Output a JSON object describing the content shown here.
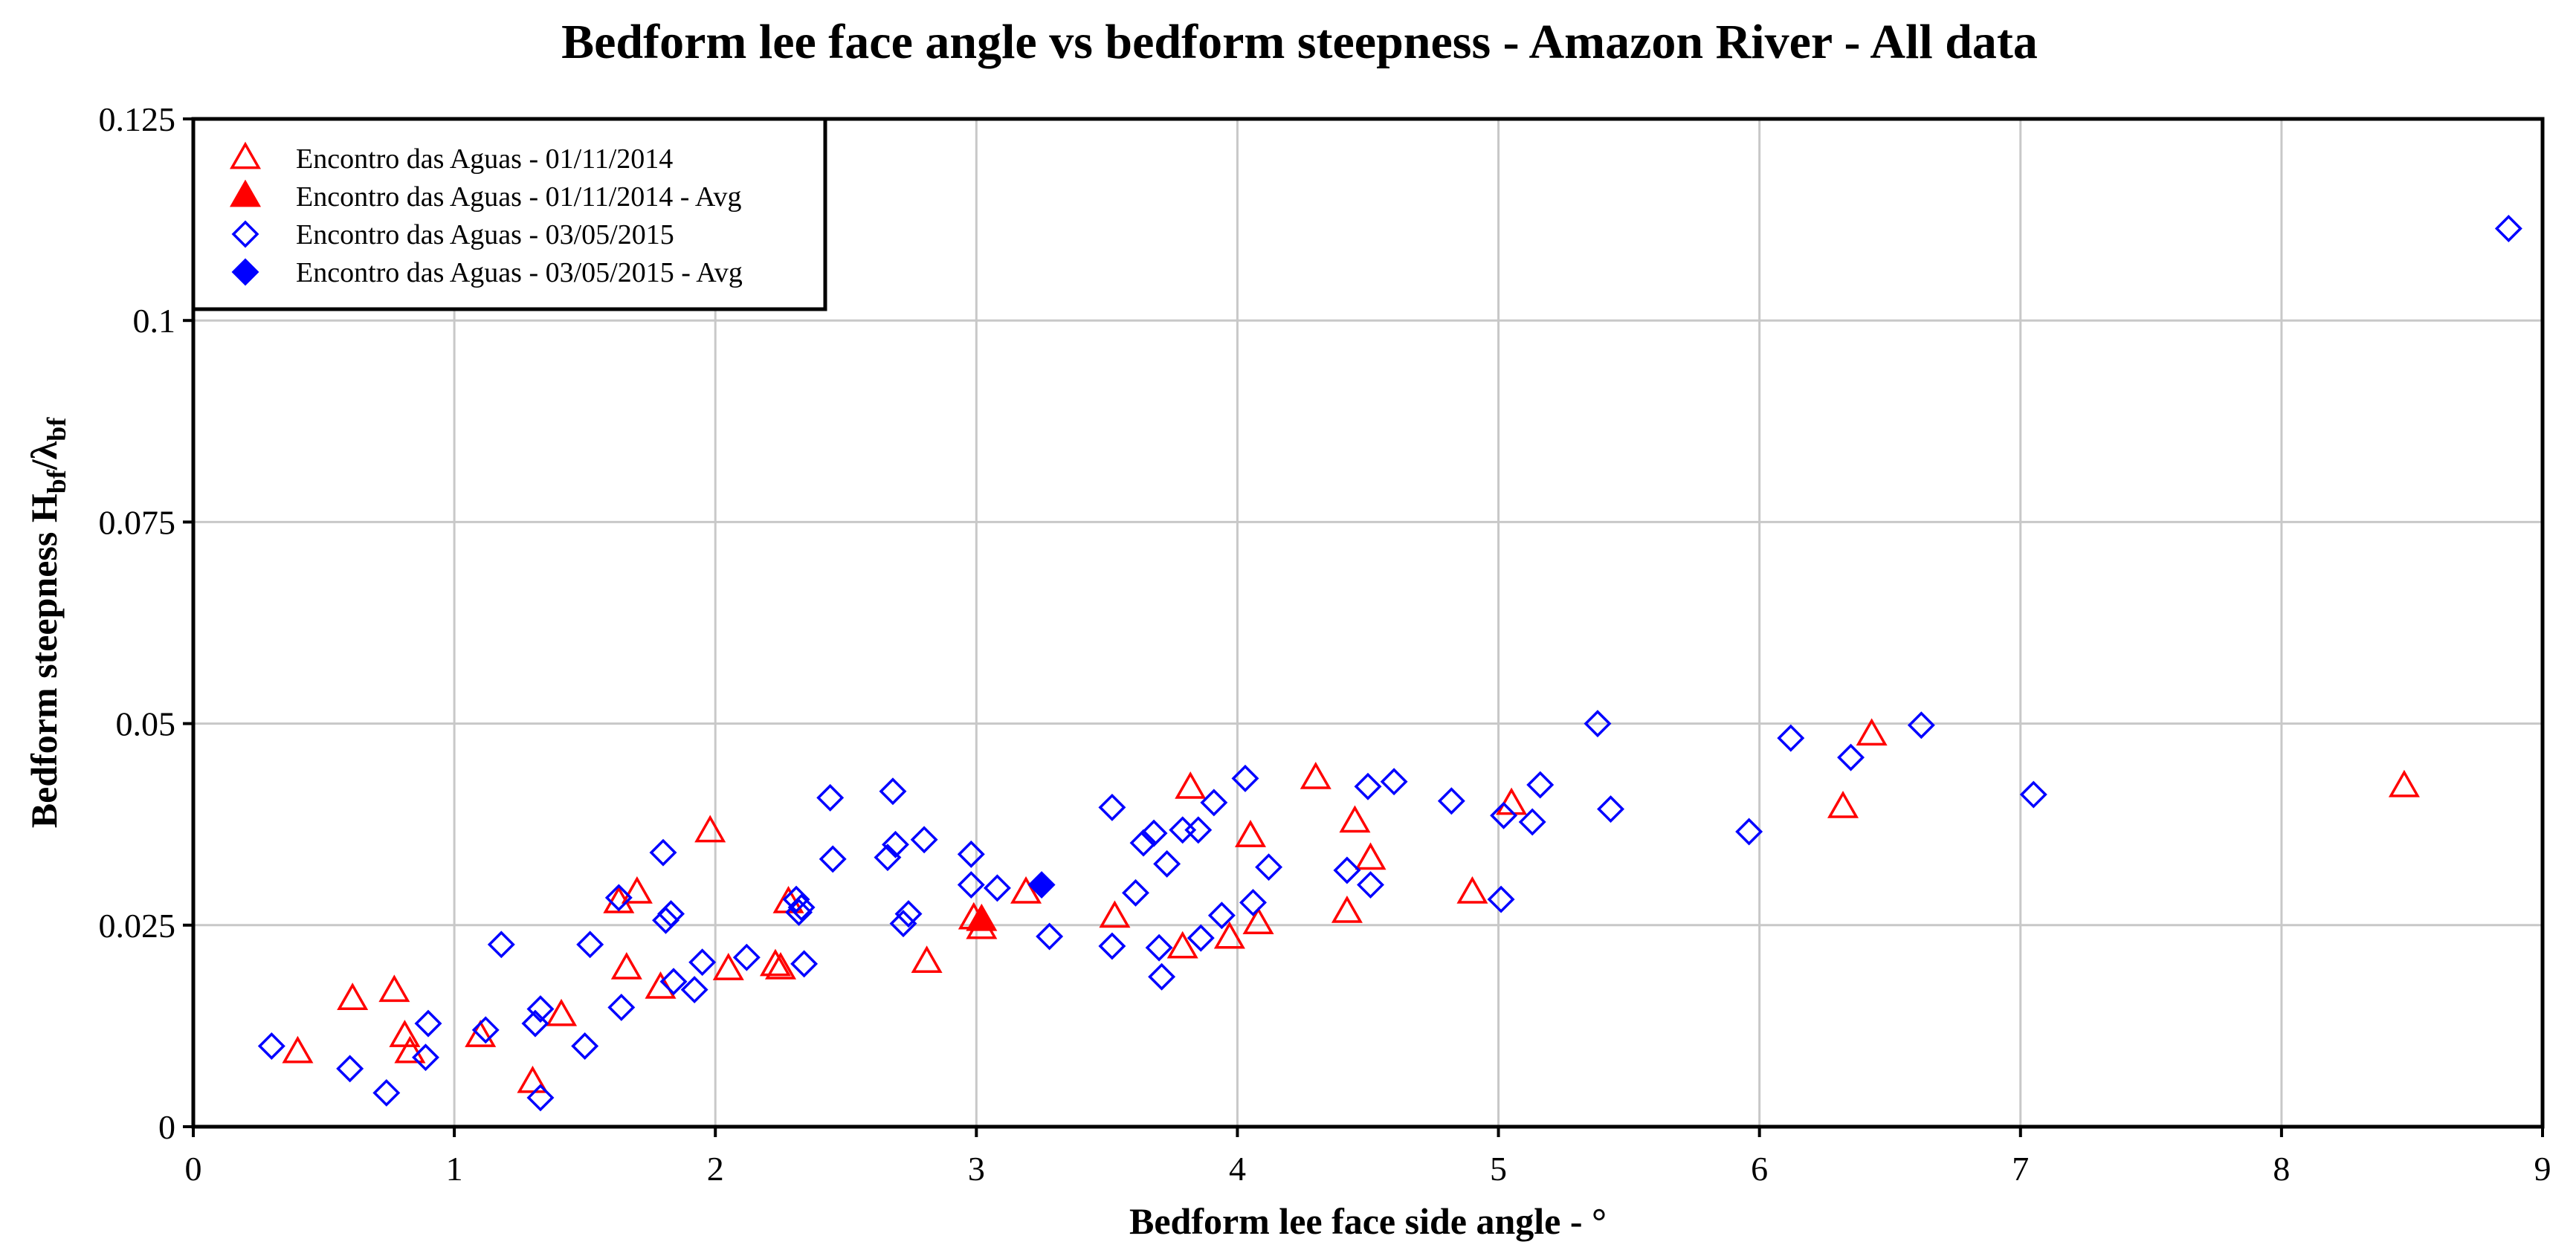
{
  "chart_data": {
    "type": "scatter",
    "title": "Bedform lee face angle vs bedform steepness - Amazon River - All data",
    "xlabel": "Bedform lee face side angle - °",
    "ylabel": {
      "main": "Bedform steepness H",
      "sub1": "bf",
      "slash": "/λ",
      "sub2": "bf"
    },
    "xlim": [
      0,
      9
    ],
    "ylim": [
      0,
      0.125
    ],
    "grid": true,
    "legend_position": "top-left",
    "x_ticks": [
      "0",
      "1",
      "2",
      "3",
      "4",
      "5",
      "6",
      "7",
      "8",
      "9"
    ],
    "y_ticks": [
      "0",
      "0.025",
      "0.05",
      "0.075",
      "0.1",
      "0.125"
    ],
    "colors": {
      "red": "#ff0000",
      "blue": "#0000ff"
    },
    "series": [
      {
        "name": "Encontro das Aguas - 01/11/2014",
        "marker": "triangle-open",
        "color": "#ff0000",
        "points": [
          [
            0.4,
            0.0092
          ],
          [
            0.61,
            0.0158
          ],
          [
            0.77,
            0.0168
          ],
          [
            0.81,
            0.0112
          ],
          [
            0.83,
            0.0092
          ],
          [
            1.1,
            0.0112
          ],
          [
            1.3,
            0.0055
          ],
          [
            1.41,
            0.0138
          ],
          [
            1.63,
            0.0278
          ],
          [
            1.66,
            0.0196
          ],
          [
            1.7,
            0.029
          ],
          [
            1.79,
            0.0172
          ],
          [
            1.98,
            0.0366
          ],
          [
            2.05,
            0.0195
          ],
          [
            2.23,
            0.02
          ],
          [
            2.25,
            0.0196
          ],
          [
            2.28,
            0.0278
          ],
          [
            2.81,
            0.0204
          ],
          [
            2.99,
            0.0258
          ],
          [
            3.02,
            0.0246
          ],
          [
            3.19,
            0.029
          ],
          [
            3.53,
            0.026
          ],
          [
            3.79,
            0.0222
          ],
          [
            3.82,
            0.042
          ],
          [
            3.97,
            0.0234
          ],
          [
            4.05,
            0.036
          ],
          [
            4.08,
            0.0252
          ],
          [
            4.3,
            0.0432
          ],
          [
            4.42,
            0.0266
          ],
          [
            4.45,
            0.0378
          ],
          [
            4.51,
            0.0332
          ],
          [
            4.9,
            0.029
          ],
          [
            5.05,
            0.04
          ],
          [
            6.32,
            0.0396
          ],
          [
            6.43,
            0.0486
          ],
          [
            8.47,
            0.0422
          ]
        ]
      },
      {
        "name": "Encontro das Aguas - 01/11/2014 - Avg",
        "marker": "triangle-filled",
        "color": "#ff0000",
        "points": [
          [
            3.02,
            0.0256
          ]
        ]
      },
      {
        "name": "Encontro das Aguas - 03/05/2015",
        "marker": "diamond-open",
        "color": "#0000ff",
        "points": [
          [
            0.3,
            0.01
          ],
          [
            0.6,
            0.0072
          ],
          [
            0.74,
            0.0042
          ],
          [
            0.89,
            0.0086
          ],
          [
            0.9,
            0.0128
          ],
          [
            1.12,
            0.012
          ],
          [
            1.18,
            0.0226
          ],
          [
            1.31,
            0.0128
          ],
          [
            1.33,
            0.0146
          ],
          [
            1.33,
            0.0036
          ],
          [
            1.5,
            0.01
          ],
          [
            1.52,
            0.0226
          ],
          [
            1.63,
            0.0284
          ],
          [
            1.64,
            0.0148
          ],
          [
            1.8,
            0.034
          ],
          [
            1.81,
            0.0256
          ],
          [
            1.83,
            0.0264
          ],
          [
            1.84,
            0.018
          ],
          [
            1.92,
            0.017
          ],
          [
            1.95,
            0.0204
          ],
          [
            2.12,
            0.021
          ],
          [
            2.31,
            0.0282
          ],
          [
            2.32,
            0.0266
          ],
          [
            2.33,
            0.0272
          ],
          [
            2.34,
            0.0202
          ],
          [
            2.44,
            0.0408
          ],
          [
            2.45,
            0.0332
          ],
          [
            2.66,
            0.0334
          ],
          [
            2.68,
            0.0416
          ],
          [
            2.69,
            0.035
          ],
          [
            2.72,
            0.0252
          ],
          [
            2.74,
            0.0264
          ],
          [
            2.8,
            0.0356
          ],
          [
            2.98,
            0.03
          ],
          [
            2.98,
            0.0338
          ],
          [
            3.08,
            0.0296
          ],
          [
            3.28,
            0.0236
          ],
          [
            3.52,
            0.0224
          ],
          [
            3.52,
            0.0396
          ],
          [
            3.61,
            0.029
          ],
          [
            3.64,
            0.0352
          ],
          [
            3.68,
            0.0364
          ],
          [
            3.7,
            0.0222
          ],
          [
            3.71,
            0.0186
          ],
          [
            3.73,
            0.0326
          ],
          [
            3.79,
            0.0368
          ],
          [
            3.85,
            0.0368
          ],
          [
            3.86,
            0.0234
          ],
          [
            3.91,
            0.0402
          ],
          [
            3.94,
            0.0262
          ],
          [
            4.03,
            0.0432
          ],
          [
            4.06,
            0.0278
          ],
          [
            4.12,
            0.0322
          ],
          [
            4.42,
            0.0318
          ],
          [
            4.5,
            0.0422
          ],
          [
            4.51,
            0.03
          ],
          [
            4.6,
            0.0428
          ],
          [
            4.82,
            0.0404
          ],
          [
            5.01,
            0.0282
          ],
          [
            5.02,
            0.0386
          ],
          [
            5.13,
            0.0378
          ],
          [
            5.16,
            0.0424
          ],
          [
            5.38,
            0.05
          ],
          [
            5.43,
            0.0394
          ],
          [
            5.96,
            0.0366
          ],
          [
            6.12,
            0.0482
          ],
          [
            6.35,
            0.0458
          ],
          [
            6.62,
            0.0498
          ],
          [
            7.05,
            0.0412
          ],
          [
            8.87,
            0.1114
          ]
        ]
      },
      {
        "name": "Encontro das Aguas - 03/05/2015 - Avg",
        "marker": "diamond-filled",
        "color": "#0000ff",
        "points": [
          [
            3.25,
            0.03
          ]
        ]
      }
    ]
  }
}
